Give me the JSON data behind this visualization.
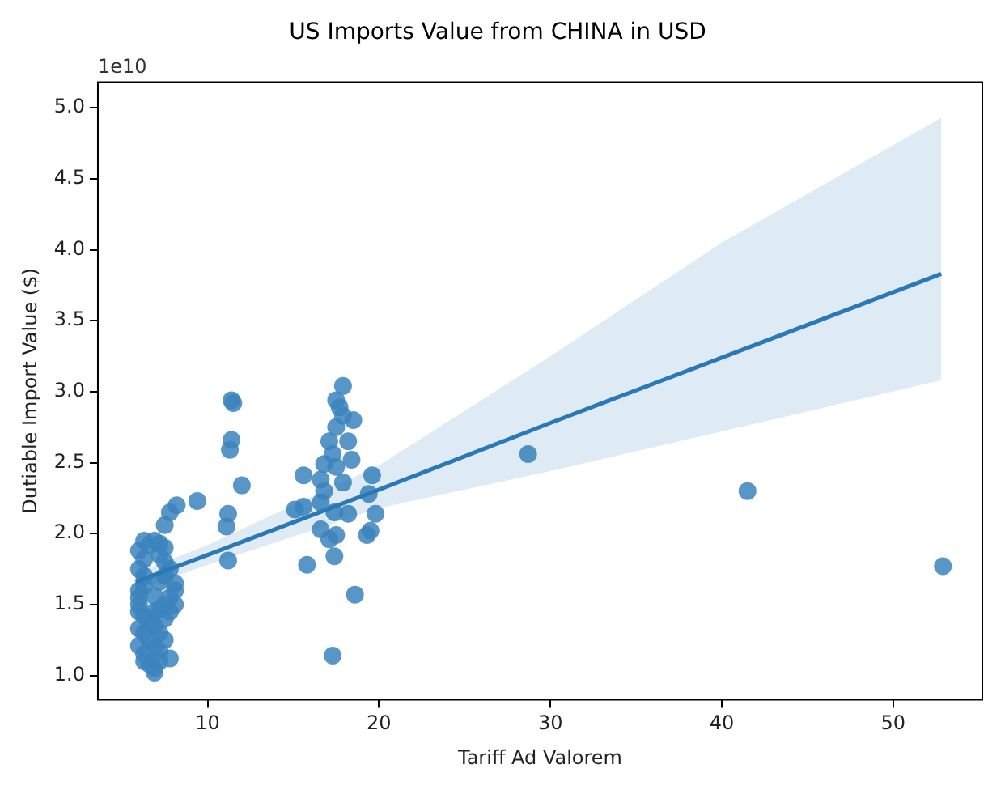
{
  "chart_data": {
    "type": "scatter",
    "title": "US Imports Value from CHINA in USD",
    "xlabel": "Tariff Ad Valorem",
    "ylabel": "Dutiable Import Value ($)",
    "annotations": [
      "1e10"
    ],
    "xlim": [
      3.6,
      55.2
    ],
    "ylim": [
      0.83,
      5.18
    ],
    "xticks": [
      10,
      20,
      30,
      40,
      50
    ],
    "yticks": [
      {
        "value": 1,
        "label": "1.0"
      },
      {
        "value": 1.5,
        "label": "1.5"
      },
      {
        "value": 2,
        "label": "2.0"
      },
      {
        "value": 2.5,
        "label": "2.5"
      },
      {
        "value": 3,
        "label": "3.0"
      },
      {
        "value": 3.5,
        "label": "3.5"
      },
      {
        "value": 4,
        "label": "4.0"
      },
      {
        "value": 4.5,
        "label": "4.5"
      },
      {
        "value": 5,
        "label": "5.0"
      }
    ],
    "grid": false,
    "legend": false,
    "marker": "circle",
    "series": [
      {
        "type": "scatter",
        "color": "#3b84bd",
        "x": [
          6.0,
          6.0,
          6.0,
          6.0,
          6.0,
          6.0,
          6.0,
          6.0,
          6.3,
          6.3,
          6.3,
          6.3,
          6.3,
          6.3,
          6.3,
          6.3,
          6.6,
          6.6,
          6.6,
          6.6,
          6.9,
          6.9,
          6.9,
          6.9,
          6.9,
          6.9,
          6.9,
          7.2,
          7.2,
          7.2,
          7.2,
          7.2,
          7.2,
          7.2,
          7.5,
          7.5,
          7.5,
          7.5,
          7.5,
          7.5,
          7.5,
          7.8,
          7.8,
          7.8,
          7.8,
          7.8,
          8.1,
          8.1,
          8.1,
          8.2,
          9.4,
          11.2,
          11.1,
          11.2,
          11.4,
          11.5,
          11.4,
          11.3,
          12.0,
          17.9,
          17.5,
          17.7,
          17.9,
          18.5,
          17.5,
          17.1,
          18.2,
          17.3,
          18.4,
          16.8,
          17.5,
          15.6,
          19.6,
          16.6,
          17.9,
          19.4,
          16.8,
          15.1,
          15.6,
          16.6,
          17.4,
          18.2,
          19.8,
          16.6,
          17.5,
          19.3,
          19.5,
          17.1,
          15.8,
          17.4,
          18.6,
          17.3,
          28.7,
          41.5,
          52.9
        ],
        "values": [
          1.55,
          1.5,
          1.6,
          1.45,
          1.33,
          1.21,
          1.88,
          1.75,
          1.95,
          1.82,
          1.7,
          1.63,
          1.42,
          1.3,
          1.15,
          1.1,
          1.92,
          1.38,
          1.25,
          1.08,
          1.95,
          1.56,
          1.45,
          1.35,
          1.2,
          1.05,
          1.02,
          1.93,
          1.85,
          1.66,
          1.47,
          1.3,
          1.17,
          1.1,
          1.9,
          1.8,
          1.7,
          1.5,
          1.4,
          1.25,
          2.06,
          1.75,
          1.55,
          1.45,
          1.12,
          2.15,
          1.6,
          1.5,
          1.65,
          2.2,
          2.23,
          2.14,
          2.05,
          1.81,
          2.94,
          2.92,
          2.66,
          2.59,
          2.34,
          3.04,
          2.94,
          2.89,
          2.83,
          2.8,
          2.75,
          2.65,
          2.65,
          2.56,
          2.52,
          2.49,
          2.47,
          2.41,
          2.41,
          2.38,
          2.36,
          2.28,
          2.3,
          2.17,
          2.19,
          2.22,
          2.15,
          2.14,
          2.14,
          2.03,
          1.99,
          1.99,
          2.02,
          1.96,
          1.78,
          1.84,
          1.57,
          1.14,
          2.56,
          2.3,
          1.77
        ]
      },
      {
        "type": "line",
        "marker": "none",
        "color": "#2a78b5",
        "x": [
          5.8,
          10,
          20,
          30,
          40,
          52.8
        ],
        "values": [
          1.66,
          1.85,
          2.31,
          2.78,
          3.24,
          3.83
        ],
        "lower": [
          1.6,
          1.78,
          2.18,
          2.44,
          2.72,
          3.08
        ],
        "upper": [
          1.72,
          1.92,
          2.48,
          3.25,
          4.05,
          4.93
        ]
      }
    ]
  }
}
